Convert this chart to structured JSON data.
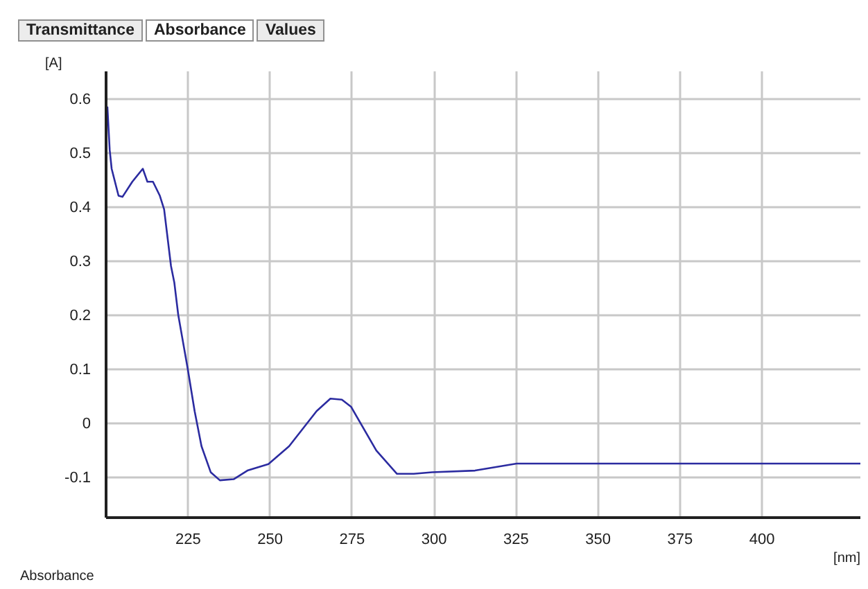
{
  "chart_data": {
    "type": "line",
    "title": "Absorbance",
    "xlabel": "[nm]",
    "ylabel": "[A]",
    "annotations": [
      "Transmittance",
      "Absorbance",
      "Values"
    ],
    "x": [
      200.4,
      201.1,
      201.7,
      203.8,
      205,
      208,
      211.2,
      212.6,
      214.3,
      216.4,
      217.7,
      219.8,
      220.8,
      222,
      224.9,
      227,
      229.1,
      231.9,
      234.7,
      238.9,
      243.1,
      249.5,
      255.8,
      264.2,
      268.4,
      271.9,
      274.7,
      282.4,
      288.7,
      293.8,
      299.4,
      312.5,
      325.2,
      430
    ],
    "series": [
      {
        "color": "#2b2ba0",
        "values": [
          0.585,
          0.505,
          0.47,
          0.42,
          0.418,
          0.446,
          0.47,
          0.446,
          0.446,
          0.42,
          0.395,
          0.29,
          0.26,
          0.2,
          0.1,
          0.022,
          -0.043,
          -0.091,
          -0.106,
          -0.104,
          -0.088,
          -0.076,
          -0.043,
          0.022,
          0.045,
          0.043,
          0.03,
          -0.051,
          -0.094,
          -0.094,
          -0.091,
          -0.088,
          -0.075,
          -0.075
        ]
      }
    ],
    "xlim": [
      200,
      430
    ],
    "ylim": [
      -0.175,
      0.65
    ],
    "xticks": [
      225,
      250,
      275,
      300,
      325,
      350,
      375,
      400
    ],
    "yticks": [
      -0.1,
      0,
      0.1,
      0.2,
      0.3,
      0.4,
      0.5,
      0.6
    ],
    "grid": true,
    "marker": "none",
    "line_style": "solid"
  }
}
